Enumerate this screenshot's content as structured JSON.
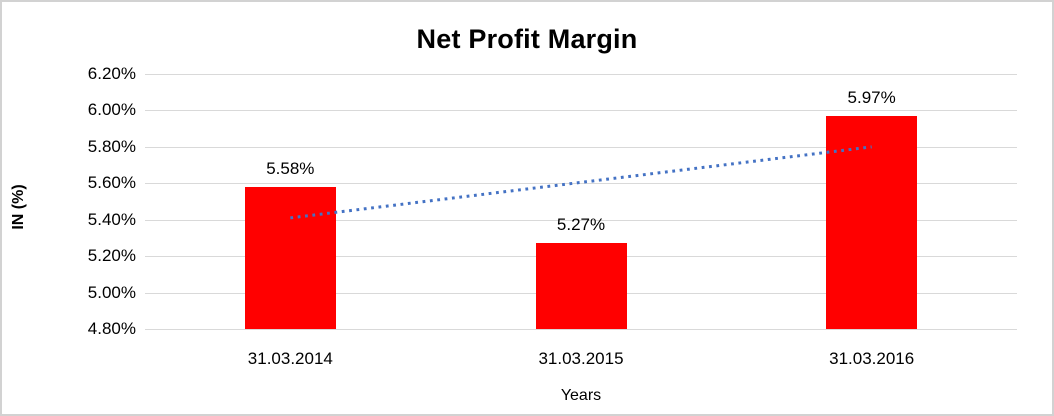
{
  "chart_data": {
    "type": "bar",
    "title": "Net Profit Margin",
    "categories": [
      "31.03.2014",
      "31.03.2015",
      "31.03.2016"
    ],
    "values": [
      5.58,
      5.27,
      5.97
    ],
    "value_labels": [
      "5.58%",
      "5.27%",
      "5.97%"
    ],
    "xlabel": "Years",
    "ylabel": "IN (%)",
    "ylim": [
      4.8,
      6.2
    ],
    "ytick_step": 0.2,
    "ytick_labels": [
      "4.80%",
      "5.00%",
      "5.20%",
      "5.40%",
      "5.60%",
      "5.80%",
      "6.00%",
      "6.20%"
    ],
    "grid": true,
    "legend": "none",
    "bar_color": "#FF0000",
    "gridline_color": "#d9d9d9",
    "trendline": {
      "type": "linear",
      "start_value": 5.41,
      "end_value": 5.8,
      "color": "#4472C4",
      "style": "dotted"
    }
  }
}
